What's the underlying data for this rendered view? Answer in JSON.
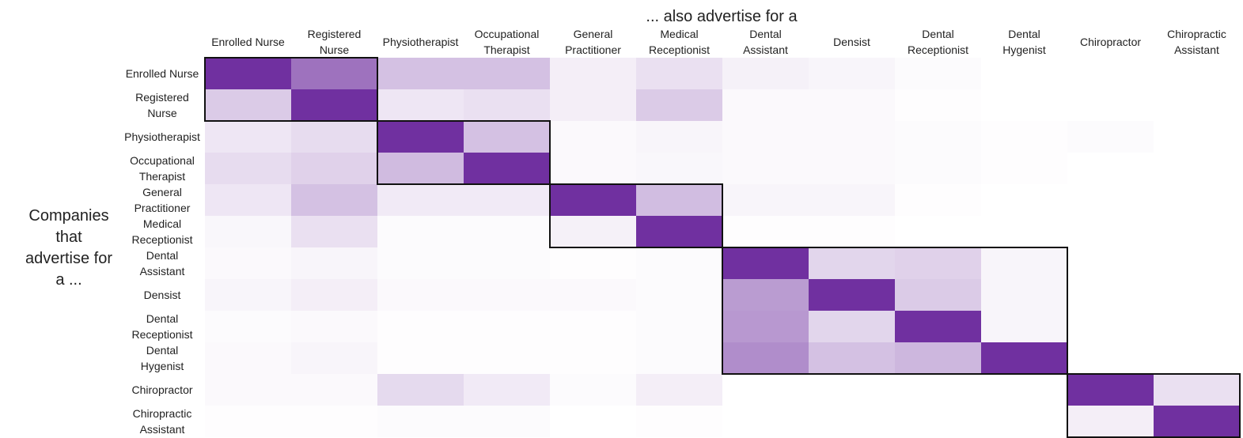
{
  "chart_data": {
    "type": "heatmap",
    "title": "",
    "xlabel": "... also advertise for a",
    "ylabel_lines": [
      "Companies",
      "that",
      "advertise for",
      "a ..."
    ],
    "categories_lines": [
      [
        "Enrolled Nurse"
      ],
      [
        "Registered",
        "Nurse"
      ],
      [
        "Physiotherapist"
      ],
      [
        "Occupational",
        "Therapist"
      ],
      [
        "General",
        "Practitioner"
      ],
      [
        "Medical",
        "Receptionist"
      ],
      [
        "Dental",
        "Assistant"
      ],
      [
        "Densist"
      ],
      [
        "Dental",
        "Receptionist"
      ],
      [
        "Dental",
        "Hygenist"
      ],
      [
        "Chiropractor"
      ],
      [
        "Chiropractic",
        "Assistant"
      ]
    ],
    "values": [
      [
        1.0,
        0.68,
        0.3,
        0.3,
        0.08,
        0.15,
        0.07,
        0.05,
        0.02,
        0.0,
        0.0,
        0.0
      ],
      [
        0.25,
        1.0,
        0.12,
        0.15,
        0.08,
        0.25,
        0.03,
        0.03,
        0.01,
        0.0,
        0.0,
        0.0
      ],
      [
        0.12,
        0.17,
        1.0,
        0.3,
        0.03,
        0.05,
        0.03,
        0.03,
        0.02,
        0.01,
        0.02,
        0.0
      ],
      [
        0.17,
        0.22,
        0.33,
        1.0,
        0.03,
        0.04,
        0.03,
        0.03,
        0.02,
        0.01,
        0.0,
        0.0
      ],
      [
        0.12,
        0.3,
        0.1,
        0.1,
        1.0,
        0.32,
        0.05,
        0.05,
        0.01,
        0.0,
        0.0,
        0.0
      ],
      [
        0.04,
        0.15,
        0.02,
        0.02,
        0.07,
        1.0,
        0.01,
        0.01,
        0.0,
        0.0,
        0.0,
        0.0
      ],
      [
        0.03,
        0.05,
        0.02,
        0.02,
        0.01,
        0.02,
        1.0,
        0.2,
        0.22,
        0.05,
        0.0,
        0.0
      ],
      [
        0.05,
        0.08,
        0.03,
        0.03,
        0.03,
        0.02,
        0.48,
        1.0,
        0.25,
        0.05,
        0.0,
        0.0
      ],
      [
        0.02,
        0.03,
        0.01,
        0.01,
        0.01,
        0.02,
        0.5,
        0.2,
        1.0,
        0.05,
        0.0,
        0.0
      ],
      [
        0.03,
        0.05,
        0.01,
        0.01,
        0.01,
        0.02,
        0.55,
        0.3,
        0.35,
        1.0,
        0.0,
        0.0
      ],
      [
        0.03,
        0.03,
        0.18,
        0.1,
        0.02,
        0.08,
        0.0,
        0.0,
        0.0,
        0.0,
        1.0,
        0.15
      ],
      [
        0.01,
        0.01,
        0.02,
        0.02,
        0.0,
        0.01,
        0.0,
        0.0,
        0.0,
        0.0,
        0.08,
        1.0
      ]
    ],
    "cluster_ranges": [
      [
        0,
        1
      ],
      [
        2,
        3
      ],
      [
        4,
        5
      ],
      [
        6,
        9
      ],
      [
        10,
        11
      ]
    ],
    "color_max": "#7030a0",
    "color_min": "#ffffff",
    "grid": false,
    "legend": "none"
  }
}
